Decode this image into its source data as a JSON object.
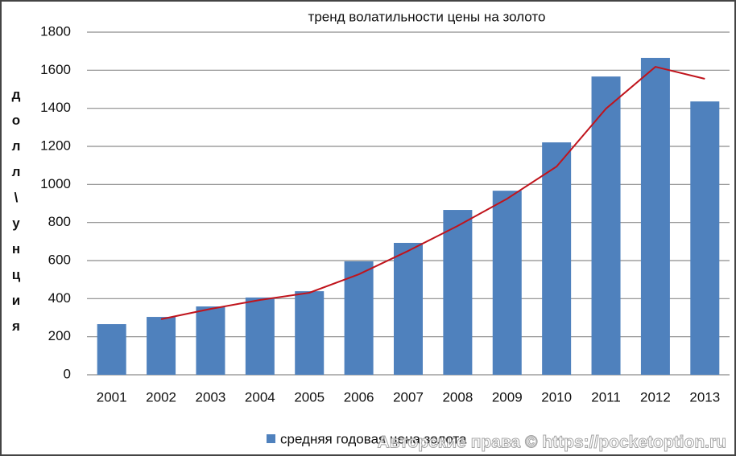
{
  "chart_data": {
    "type": "bar",
    "title": "тренд волатильности цены на золото",
    "y_label": "долл\\унция",
    "categories": [
      "2001",
      "2002",
      "2003",
      "2004",
      "2005",
      "2006",
      "2007",
      "2008",
      "2009",
      "2010",
      "2011",
      "2012",
      "2013"
    ],
    "series": [
      {
        "name": "средняя годовая цена золота",
        "color": "#4f81bd",
        "type": "bar",
        "values": [
          266,
          304,
          359,
          406,
          439,
          596,
          693,
          866,
          967,
          1221,
          1567,
          1665,
          1436
        ]
      },
      {
        "color": "#c0141c",
        "type": "line",
        "values": [
          null,
          292,
          346,
          393,
          431,
          528,
          651,
          782,
          925,
          1094,
          1398,
          1618,
          1555
        ]
      }
    ],
    "ylim": [
      0,
      1800
    ],
    "yticks": [
      0,
      200,
      400,
      600,
      800,
      1000,
      1200,
      1400,
      1600,
      1800
    ],
    "grid": true,
    "legend": "bottom",
    "watermark": "Авторские права © https://pocketoption.ru"
  }
}
